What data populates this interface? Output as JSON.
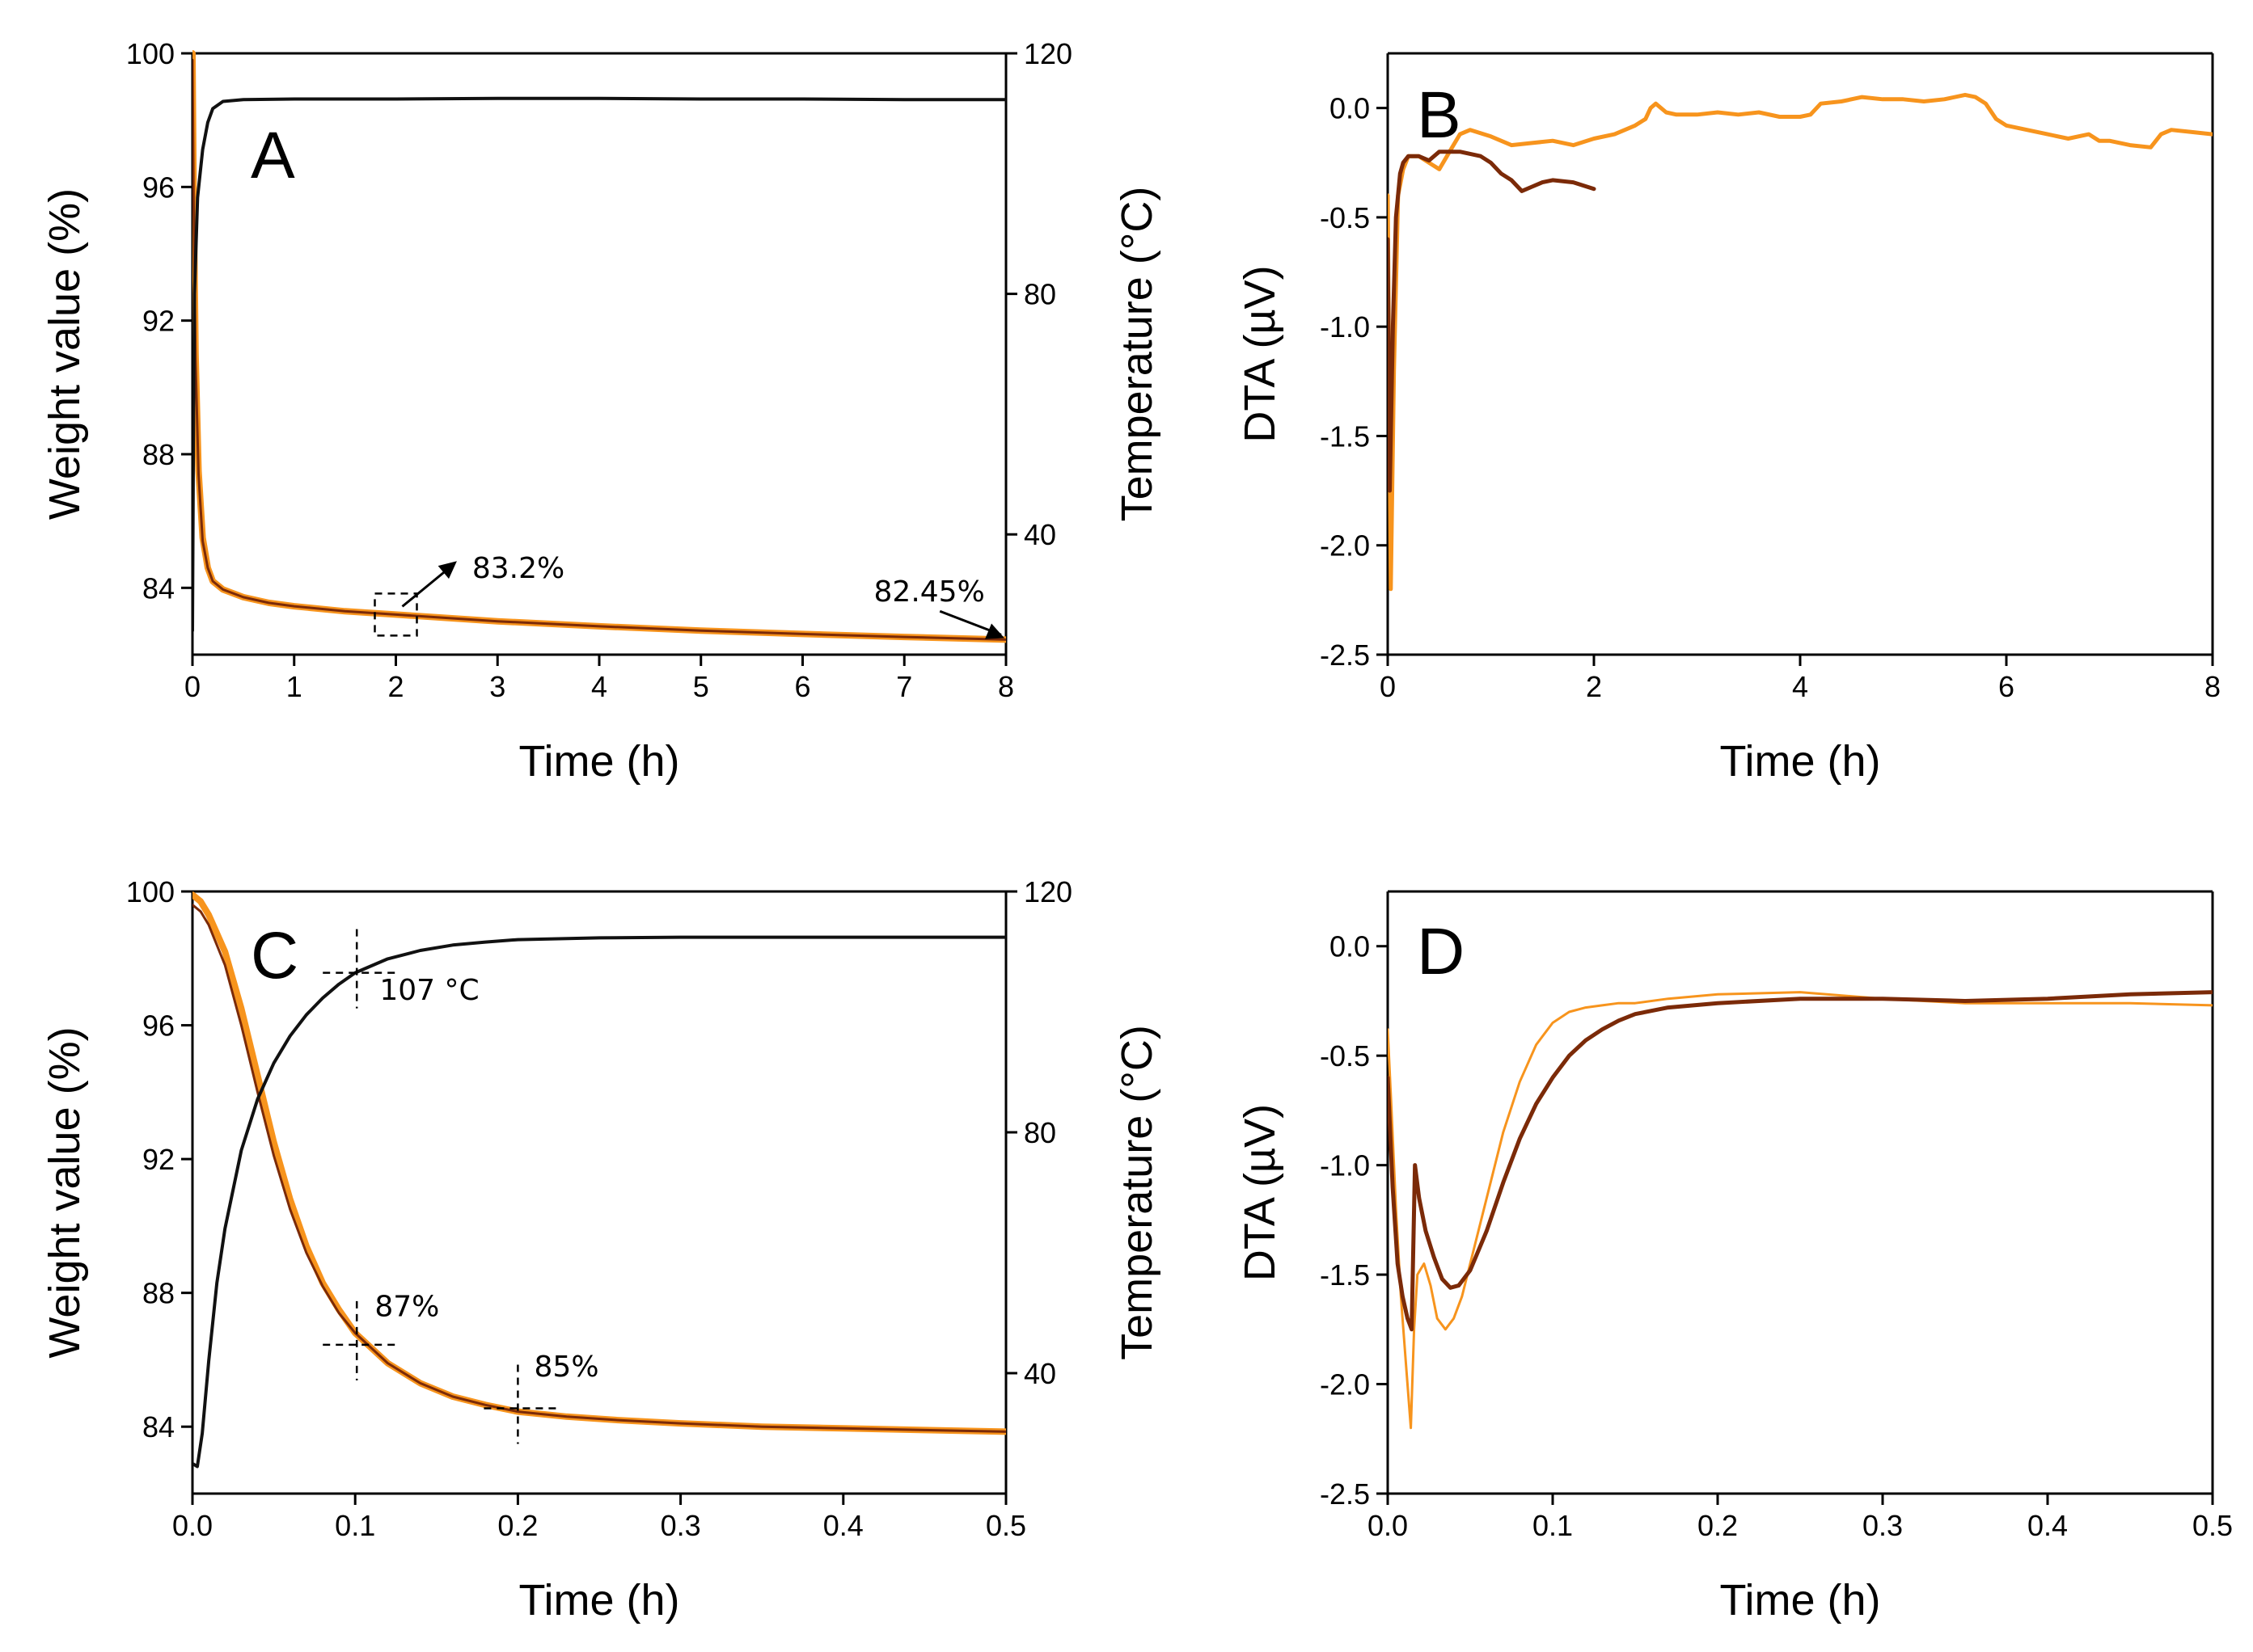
{
  "chart_data": [
    {
      "panel": "A",
      "type": "line",
      "xlabel": "Time (h)",
      "ylabel": "Weight value (%)",
      "y2label": "Temperature (°C)",
      "xlim": [
        0,
        8
      ],
      "ylim": [
        82,
        100
      ],
      "y2lim": [
        20,
        120
      ],
      "xticks": [
        0,
        1,
        2,
        3,
        4,
        5,
        6,
        7,
        8
      ],
      "yticks": [
        84,
        88,
        92,
        96,
        100
      ],
      "y2ticks": [
        40,
        80,
        120
      ],
      "series": [
        {
          "name": "Weight value (orange)",
          "axis": "left",
          "color": "#f7941d",
          "width": 8,
          "x": [
            0,
            0.01,
            0.03,
            0.06,
            0.1,
            0.15,
            0.2,
            0.3,
            0.5,
            0.75,
            1,
            1.5,
            2,
            3,
            4,
            5,
            6,
            7,
            8
          ],
          "y": [
            100,
            96,
            91,
            87.5,
            85.5,
            84.6,
            84.2,
            83.95,
            83.72,
            83.55,
            83.45,
            83.3,
            83.2,
            83.0,
            82.85,
            82.72,
            82.62,
            82.53,
            82.45
          ]
        },
        {
          "name": "Weight value (dark)",
          "axis": "left",
          "color": "#7b2a08",
          "width": 3,
          "x": [
            0,
            0.01,
            0.03,
            0.06,
            0.1,
            0.15,
            0.2,
            0.3,
            0.5,
            0.75,
            1,
            1.5,
            2,
            3,
            4,
            5,
            6,
            7,
            8
          ],
          "y": [
            99.8,
            95.8,
            90.8,
            87.4,
            85.4,
            84.6,
            84.2,
            83.95,
            83.72,
            83.55,
            83.45,
            83.3,
            83.2,
            83.0,
            82.85,
            82.72,
            82.62,
            82.53,
            82.45
          ]
        },
        {
          "name": "Temperature",
          "axis": "right",
          "color": "#111111",
          "width": 4,
          "x": [
            0,
            0.01,
            0.02,
            0.05,
            0.1,
            0.15,
            0.2,
            0.3,
            0.5,
            1,
            2,
            3,
            4,
            5,
            6,
            7,
            8
          ],
          "y": [
            24,
            60,
            80,
            96,
            104,
            108.5,
            110.8,
            112,
            112.3,
            112.4,
            112.4,
            112.5,
            112.5,
            112.4,
            112.4,
            112.3,
            112.3
          ]
        }
      ],
      "annotations": [
        {
          "text": "83.2%",
          "x": 2.75,
          "y": 84.3
        },
        {
          "text": "82.45%",
          "x": 6.7,
          "y": 83.6
        }
      ],
      "panel_label": "A"
    },
    {
      "panel": "B",
      "type": "line",
      "xlabel": "Time (h)",
      "ylabel": "DTA (µV)",
      "xlim": [
        0,
        8
      ],
      "ylim": [
        -2.5,
        0.25
      ],
      "xticks": [
        0,
        2,
        4,
        6,
        8
      ],
      "yticks": [
        -2.5,
        -2.0,
        -1.5,
        -1.0,
        -0.5,
        0.0
      ],
      "tick_labels_y": [
        "-2.5",
        "-2.0",
        "-1.5",
        "-1.0",
        "-0.5",
        "0.0"
      ],
      "series": [
        {
          "name": "DTA (orange)",
          "color": "#f7941d",
          "width": 5,
          "x": [
            0,
            0.03,
            0.06,
            0.1,
            0.15,
            0.2,
            0.3,
            0.4,
            0.5,
            0.6,
            0.7,
            0.8,
            1.0,
            1.2,
            1.4,
            1.6,
            1.8,
            2.0,
            2.2,
            2.4,
            2.5,
            2.55,
            2.6,
            2.7,
            2.8,
            3.0,
            3.2,
            3.4,
            3.6,
            3.8,
            4.0,
            4.1,
            4.2,
            4.4,
            4.6,
            4.8,
            5.0,
            5.2,
            5.4,
            5.6,
            5.7,
            5.8,
            5.9,
            6.0,
            6.2,
            6.4,
            6.6,
            6.8,
            6.9,
            7.0,
            7.2,
            7.4,
            7.5,
            7.6,
            7.8,
            8.0
          ],
          "y": [
            -0.4,
            -2.2,
            -1.2,
            -0.4,
            -0.28,
            -0.22,
            -0.22,
            -0.25,
            -0.28,
            -0.2,
            -0.12,
            -0.1,
            -0.13,
            -0.17,
            -0.16,
            -0.15,
            -0.17,
            -0.14,
            -0.12,
            -0.08,
            -0.05,
            0.0,
            0.02,
            -0.02,
            -0.03,
            -0.03,
            -0.02,
            -0.03,
            -0.02,
            -0.04,
            -0.04,
            -0.03,
            0.02,
            0.03,
            0.05,
            0.04,
            0.04,
            0.03,
            0.04,
            0.06,
            0.05,
            0.02,
            -0.05,
            -0.08,
            -0.1,
            -0.12,
            -0.14,
            -0.12,
            -0.15,
            -0.15,
            -0.17,
            -0.18,
            -0.12,
            -0.1,
            -0.11,
            -0.12
          ]
        },
        {
          "name": "DTA (dark)",
          "color": "#7b2a08",
          "width": 5,
          "x": [
            0,
            0.02,
            0.05,
            0.08,
            0.12,
            0.15,
            0.2,
            0.3,
            0.4,
            0.5,
            0.7,
            0.9,
            1.0,
            1.1,
            1.2,
            1.3,
            1.4,
            1.5,
            1.6,
            1.8,
            2.0
          ],
          "y": [
            -0.6,
            -1.75,
            -1.0,
            -0.5,
            -0.3,
            -0.25,
            -0.22,
            -0.22,
            -0.24,
            -0.2,
            -0.2,
            -0.22,
            -0.25,
            -0.3,
            -0.33,
            -0.38,
            -0.36,
            -0.34,
            -0.33,
            -0.34,
            -0.37
          ]
        }
      ],
      "panel_label": "B"
    },
    {
      "panel": "C",
      "type": "line",
      "xlabel": "Time (h)",
      "ylabel": "Weight value (%)",
      "y2label": "Temperature (°C)",
      "xlim": [
        0,
        0.5
      ],
      "ylim": [
        82,
        100
      ],
      "y2lim": [
        20,
        120
      ],
      "xticks": [
        0.0,
        0.1,
        0.2,
        0.3,
        0.4,
        0.5
      ],
      "tick_labels_x": [
        "0.0",
        "0.1",
        "0.2",
        "0.3",
        "0.4",
        "0.5"
      ],
      "yticks": [
        84,
        88,
        92,
        96,
        100
      ],
      "y2ticks": [
        40,
        80,
        120
      ],
      "series": [
        {
          "name": "Weight value (orange)",
          "axis": "left",
          "color": "#f7941d",
          "width": 8,
          "x": [
            0,
            0.005,
            0.01,
            0.02,
            0.03,
            0.04,
            0.05,
            0.06,
            0.07,
            0.08,
            0.09,
            0.1,
            0.12,
            0.14,
            0.16,
            0.18,
            0.2,
            0.23,
            0.26,
            0.3,
            0.35,
            0.4,
            0.45,
            0.5
          ],
          "y": [
            99.9,
            99.7,
            99.3,
            98.2,
            96.5,
            94.5,
            92.5,
            90.8,
            89.4,
            88.3,
            87.5,
            86.8,
            85.9,
            85.3,
            84.9,
            84.65,
            84.45,
            84.3,
            84.2,
            84.1,
            84.0,
            83.95,
            83.9,
            83.85
          ]
        },
        {
          "name": "Weight value (dark)",
          "axis": "left",
          "color": "#7b2a08",
          "width": 3,
          "x": [
            0,
            0.005,
            0.01,
            0.02,
            0.03,
            0.04,
            0.05,
            0.06,
            0.07,
            0.08,
            0.09,
            0.1,
            0.12,
            0.14,
            0.16,
            0.18,
            0.2,
            0.23,
            0.26,
            0.3,
            0.35,
            0.4,
            0.45,
            0.5
          ],
          "y": [
            99.6,
            99.4,
            99.0,
            97.8,
            96.0,
            94.0,
            92.1,
            90.5,
            89.2,
            88.2,
            87.4,
            86.8,
            85.9,
            85.3,
            84.9,
            84.65,
            84.45,
            84.3,
            84.2,
            84.1,
            84.0,
            83.95,
            83.9,
            83.85
          ]
        },
        {
          "name": "Temperature",
          "axis": "right",
          "color": "#111111",
          "width": 4,
          "x": [
            0,
            0.003,
            0.006,
            0.01,
            0.015,
            0.02,
            0.03,
            0.04,
            0.05,
            0.06,
            0.07,
            0.08,
            0.09,
            0.1,
            0.12,
            0.14,
            0.16,
            0.18,
            0.2,
            0.25,
            0.3,
            0.4,
            0.5
          ],
          "y": [
            25,
            24.5,
            30,
            42,
            55,
            64,
            77,
            85.5,
            91.5,
            96,
            99.5,
            102.3,
            104.6,
            106.5,
            108.8,
            110.2,
            111.1,
            111.6,
            112,
            112.3,
            112.4,
            112.4,
            112.4
          ]
        }
      ],
      "annotations": [
        {
          "text": "107 °C",
          "x": 0.115,
          "y2": 102
        },
        {
          "text": "87%",
          "x": 0.112,
          "y": 87.3
        },
        {
          "text": "85%",
          "x": 0.21,
          "y": 85.5
        }
      ],
      "panel_label": "C"
    },
    {
      "panel": "D",
      "type": "line",
      "xlabel": "Time (h)",
      "ylabel": "DTA (µV)",
      "xlim": [
        0,
        0.5
      ],
      "ylim": [
        -2.5,
        0.25
      ],
      "xticks": [
        0.0,
        0.1,
        0.2,
        0.3,
        0.4,
        0.5
      ],
      "tick_labels_x": [
        "0.0",
        "0.1",
        "0.2",
        "0.3",
        "0.4",
        "0.5"
      ],
      "yticks": [
        -2.5,
        -2.0,
        -1.5,
        -1.0,
        -0.5,
        0.0
      ],
      "tick_labels_y": [
        "-2.5",
        "-2.0",
        "-1.5",
        "-1.0",
        "-0.5",
        "0.0"
      ],
      "series": [
        {
          "name": "DTA (orange)",
          "color": "#f7941d",
          "width": 3,
          "x": [
            0,
            0.002,
            0.005,
            0.008,
            0.011,
            0.014,
            0.016,
            0.018,
            0.022,
            0.026,
            0.03,
            0.035,
            0.04,
            0.045,
            0.05,
            0.06,
            0.07,
            0.08,
            0.09,
            0.1,
            0.11,
            0.12,
            0.13,
            0.14,
            0.15,
            0.17,
            0.2,
            0.25,
            0.3,
            0.35,
            0.4,
            0.45,
            0.5
          ],
          "y": [
            -0.38,
            -0.7,
            -1.2,
            -1.6,
            -1.9,
            -2.2,
            -1.75,
            -1.5,
            -1.45,
            -1.55,
            -1.7,
            -1.75,
            -1.7,
            -1.6,
            -1.45,
            -1.15,
            -0.85,
            -0.62,
            -0.45,
            -0.35,
            -0.3,
            -0.28,
            -0.27,
            -0.26,
            -0.26,
            -0.24,
            -0.22,
            -0.21,
            -0.24,
            -0.26,
            -0.26,
            -0.26,
            -0.27
          ]
        },
        {
          "name": "DTA (dark)",
          "color": "#7b2a08",
          "width": 5,
          "x": [
            0,
            0.003,
            0.006,
            0.009,
            0.012,
            0.0145,
            0.0165,
            0.019,
            0.023,
            0.028,
            0.033,
            0.038,
            0.043,
            0.05,
            0.06,
            0.07,
            0.08,
            0.09,
            0.1,
            0.11,
            0.12,
            0.13,
            0.14,
            0.15,
            0.17,
            0.2,
            0.25,
            0.3,
            0.35,
            0.4,
            0.45,
            0.5
          ],
          "y": [
            -0.6,
            -1.1,
            -1.45,
            -1.6,
            -1.7,
            -1.75,
            -1.0,
            -1.15,
            -1.3,
            -1.42,
            -1.52,
            -1.56,
            -1.55,
            -1.48,
            -1.3,
            -1.08,
            -0.88,
            -0.72,
            -0.6,
            -0.5,
            -0.43,
            -0.38,
            -0.34,
            -0.31,
            -0.28,
            -0.26,
            -0.24,
            -0.24,
            -0.25,
            -0.24,
            -0.22,
            -0.21
          ]
        }
      ],
      "panel_label": "D"
    }
  ]
}
